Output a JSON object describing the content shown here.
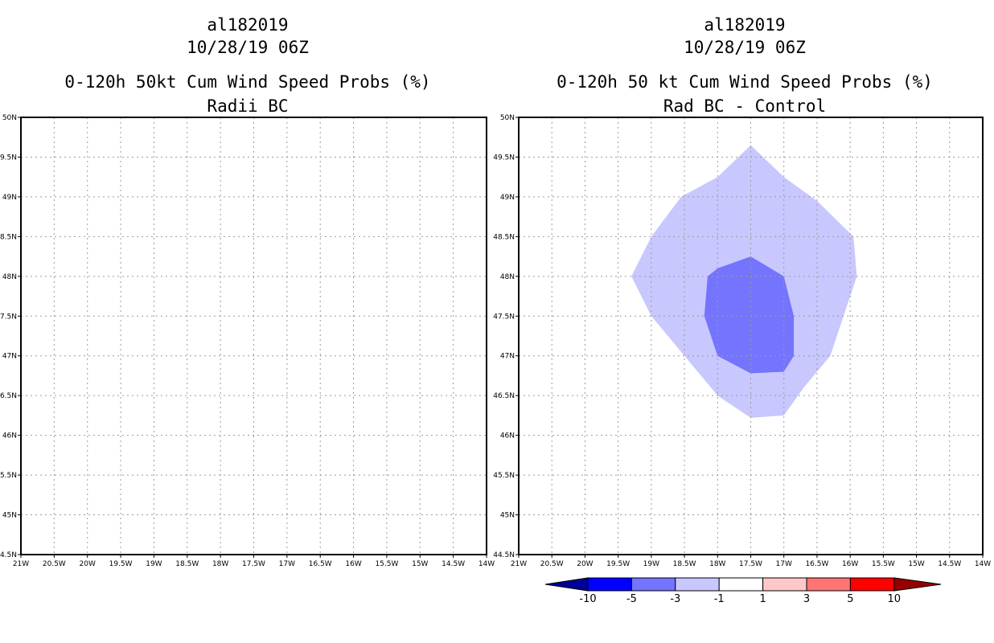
{
  "chart_data": [
    {
      "type": "contour",
      "storm_id": "al182019",
      "datetime": "10/28/19 06Z",
      "title": "0-120h 50kt Cum Wind Speed Probs (%)",
      "subtitle": "Radii BC",
      "x_ticks": [
        "21W",
        "20.5W",
        "20W",
        "19.5W",
        "19W",
        "18.5W",
        "18W",
        "17.5W",
        "17W",
        "16.5W",
        "16W",
        "15.5W",
        "15W",
        "14.5W",
        "14W"
      ],
      "y_ticks": [
        "50N",
        "49.5N",
        "49N",
        "48.5N",
        "48N",
        "47.5N",
        "47N",
        "46.5N",
        "46N",
        "45.5N",
        "45N",
        "44.5N"
      ],
      "xlim": [
        -21,
        -14
      ],
      "ylim": [
        44.5,
        50
      ],
      "contours": []
    },
    {
      "type": "contour",
      "storm_id": "al182019",
      "datetime": "10/28/19 06Z",
      "title": "0-120h 50 kt Cum Wind Speed Probs (%)",
      "subtitle": "Rad BC - Control",
      "x_ticks": [
        "21W",
        "20.5W",
        "20W",
        "19.5W",
        "19W",
        "18.5W",
        "18W",
        "17.5W",
        "17W",
        "16.5W",
        "16W",
        "15.5W",
        "15W",
        "14.5W",
        "14W"
      ],
      "y_ticks": [
        "50N",
        "49.5N",
        "49N",
        "48.5N",
        "48N",
        "47.5N",
        "47N",
        "46.5N",
        "46N",
        "45.5N",
        "45N",
        "44.5N"
      ],
      "xlim": [
        -21,
        -14
      ],
      "ylim": [
        44.5,
        50
      ],
      "contours": [
        {
          "level": "-3 to -1",
          "color": "#c8c8ff",
          "points": [
            [
              -17.5,
              49.65
            ],
            [
              -17.0,
              49.25
            ],
            [
              -16.5,
              48.95
            ],
            [
              -15.95,
              48.5
            ],
            [
              -15.9,
              48.0
            ],
            [
              -16.1,
              47.5
            ],
            [
              -16.3,
              47.0
            ],
            [
              -16.7,
              46.6
            ],
            [
              -17.0,
              46.25
            ],
            [
              -17.5,
              46.22
            ],
            [
              -18.0,
              46.5
            ],
            [
              -18.5,
              47.0
            ],
            [
              -19.0,
              47.5
            ],
            [
              -19.3,
              48.0
            ],
            [
              -19.0,
              48.5
            ],
            [
              -18.55,
              49.0
            ],
            [
              -18.0,
              49.25
            ]
          ]
        },
        {
          "level": "-5 to -3",
          "color": "#7474ff",
          "points": [
            [
              -17.5,
              48.25
            ],
            [
              -17.0,
              48.0
            ],
            [
              -16.85,
              47.5
            ],
            [
              -16.85,
              47.0
            ],
            [
              -17.0,
              46.8
            ],
            [
              -17.5,
              46.78
            ],
            [
              -18.0,
              47.0
            ],
            [
              -18.2,
              47.5
            ],
            [
              -18.15,
              48.0
            ],
            [
              -18.0,
              48.1
            ]
          ]
        }
      ],
      "colorbar": {
        "labels": [
          "-10",
          "-5",
          "-3",
          "-1",
          "1",
          "3",
          "5",
          "10"
        ],
        "colors": [
          "#000096",
          "#0000ff",
          "#7474ff",
          "#c8c8ff",
          "#ffffff",
          "#ffc8c8",
          "#ff7474",
          "#ff0000",
          "#960000"
        ]
      }
    }
  ]
}
